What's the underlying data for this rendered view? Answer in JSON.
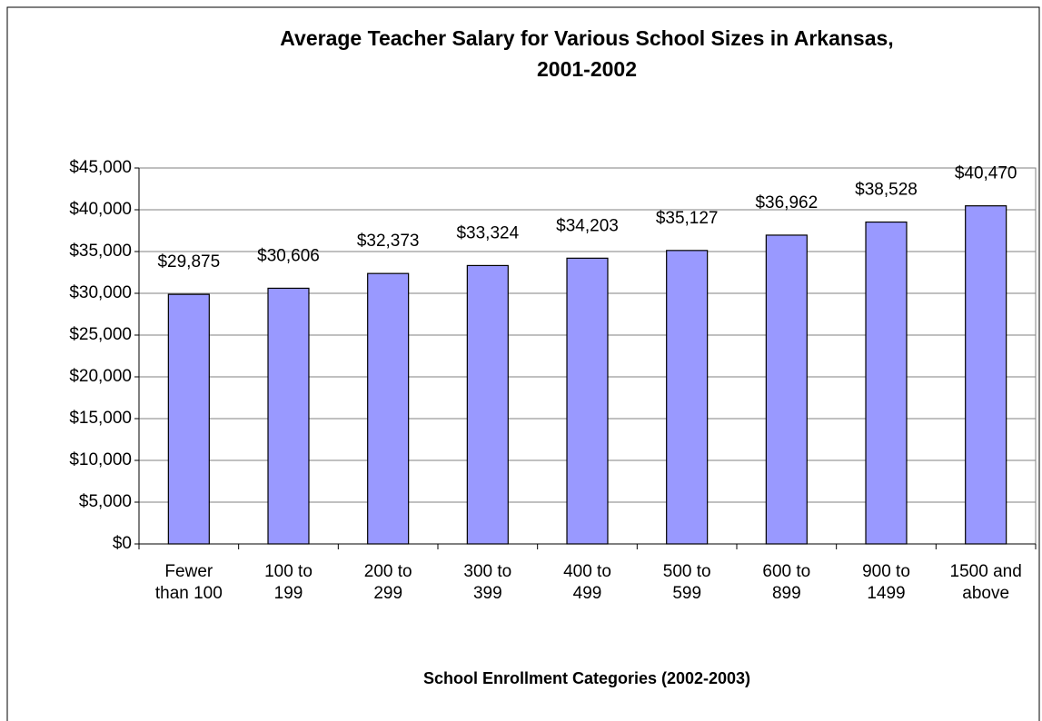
{
  "chart_data": {
    "type": "bar",
    "title": [
      "Average Teacher Salary for Various School Sizes in Arkansas,",
      "2001-2002"
    ],
    "x_label": "School Enrollment Categories (2002-2003)",
    "categories": [
      [
        "Fewer",
        "than 100"
      ],
      [
        "100 to",
        "199"
      ],
      [
        "200 to",
        "299"
      ],
      [
        "300 to",
        "399"
      ],
      [
        "400 to",
        "499"
      ],
      [
        "500 to",
        "599"
      ],
      [
        "600 to",
        "899"
      ],
      [
        "900 to",
        "1499"
      ],
      [
        "1500 and",
        "above"
      ]
    ],
    "values": [
      29875,
      30606,
      32373,
      33324,
      34203,
      35127,
      36962,
      38528,
      40470
    ],
    "value_labels": [
      "$29,875",
      "$30,606",
      "$32,373",
      "$33,324",
      "$34,203",
      "$35,127",
      "$36,962",
      "$38,528",
      "$40,470"
    ],
    "color": "#9999ff",
    "ylim": [
      0,
      45000
    ],
    "yticks": [
      {
        "value": 0,
        "label": "$0"
      },
      {
        "value": 5000,
        "label": "$5,000"
      },
      {
        "value": 10000,
        "label": "$10,000"
      },
      {
        "value": 15000,
        "label": "$15,000"
      },
      {
        "value": 20000,
        "label": "$20,000"
      },
      {
        "value": 25000,
        "label": "$25,000"
      },
      {
        "value": 30000,
        "label": "$30,000"
      },
      {
        "value": 35000,
        "label": "$35,000"
      },
      {
        "value": 40000,
        "label": "$40,000"
      },
      {
        "value": 45000,
        "label": "$45,000"
      }
    ],
    "grid": true
  }
}
